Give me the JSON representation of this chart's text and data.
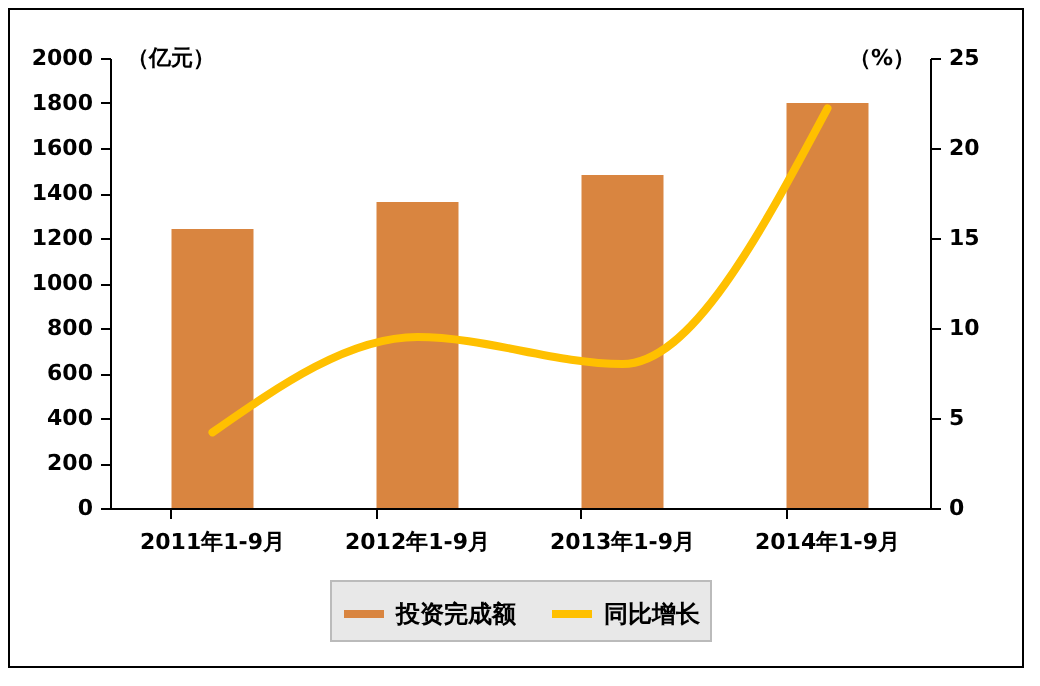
{
  "chart_data": {
    "type": "bar",
    "ylabel": "（亿元）",
    "y2label": "（%）",
    "categories": [
      "2011年1-9月",
      "2012年1-9月",
      "2013年1-9月",
      "2014年1-9月"
    ],
    "series": [
      {
        "name": "投资完成额",
        "color": "#d98540",
        "values": [
          1240,
          1360,
          1480,
          1800
        ]
      },
      {
        "name": "同比增长",
        "type": "line",
        "axis": "y2",
        "color": "#ffc000",
        "values": [
          4.2,
          9.5,
          8.0,
          22.2
        ]
      }
    ],
    "ylim": [
      0,
      2000
    ],
    "yticks": [
      0,
      200,
      400,
      600,
      800,
      1000,
      1200,
      1400,
      1600,
      1800,
      2000
    ],
    "y2lim": [
      0,
      25
    ],
    "y2ticks": [
      0,
      5,
      10,
      15,
      20,
      25
    ],
    "legend": "bottom",
    "grid": false,
    "marker": "none"
  }
}
